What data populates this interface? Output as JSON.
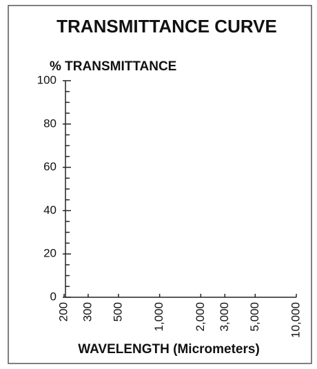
{
  "chart_data": {
    "type": "line",
    "title": "TRANSMITTANCE CURVE",
    "y_label": "% TRANSMITTANCE",
    "x_label": "WAVELENGTH (Micrometers)",
    "series": [],
    "xscale": "log",
    "xlim": [
      200,
      10000
    ],
    "xticks": [
      200,
      300,
      500,
      {
        "value": 1000,
        "label": "1,000"
      },
      {
        "value": 2000,
        "label": "2,000"
      },
      {
        "value": 3000,
        "label": "3,000"
      },
      {
        "value": 5000,
        "label": "5,000"
      },
      {
        "value": 10000,
        "label": "10,000"
      }
    ],
    "ylim": [
      0,
      100
    ],
    "yticks": [
      0,
      20,
      40,
      60,
      80,
      100
    ],
    "yminorticks": [
      5,
      10,
      15,
      25,
      30,
      35,
      45,
      50,
      55,
      65,
      70,
      75,
      85,
      90,
      95
    ],
    "grid": false
  }
}
